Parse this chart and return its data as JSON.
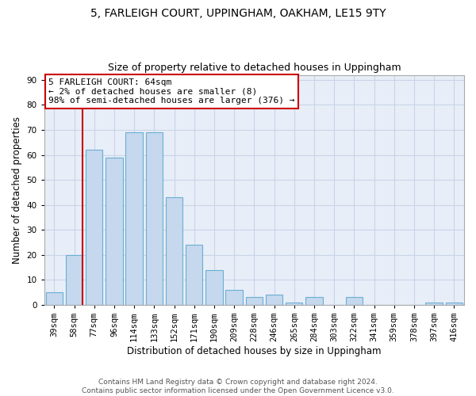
{
  "title": "5, FARLEIGH COURT, UPPINGHAM, OAKHAM, LE15 9TY",
  "subtitle": "Size of property relative to detached houses in Uppingham",
  "xlabel": "Distribution of detached houses by size in Uppingham",
  "ylabel": "Number of detached properties",
  "categories": [
    "39sqm",
    "58sqm",
    "77sqm",
    "96sqm",
    "114sqm",
    "133sqm",
    "152sqm",
    "171sqm",
    "190sqm",
    "209sqm",
    "228sqm",
    "246sqm",
    "265sqm",
    "284sqm",
    "303sqm",
    "322sqm",
    "341sqm",
    "359sqm",
    "378sqm",
    "397sqm",
    "416sqm"
  ],
  "values": [
    5,
    20,
    62,
    59,
    69,
    69,
    43,
    24,
    14,
    6,
    3,
    4,
    1,
    3,
    0,
    3,
    0,
    0,
    0,
    1,
    1
  ],
  "bar_color": "#c5d8ed",
  "bar_edge_color": "#6aafd4",
  "annotation_text": "5 FARLEIGH COURT: 64sqm\n← 2% of detached houses are smaller (8)\n98% of semi-detached houses are larger (376) →",
  "annotation_box_edge_color": "#cc0000",
  "vline_color": "#cc0000",
  "ylim": [
    0,
    92
  ],
  "yticks": [
    0,
    10,
    20,
    30,
    40,
    50,
    60,
    70,
    80,
    90
  ],
  "grid_color": "#c8d4e8",
  "background_color": "#e8eef8",
  "footer": "Contains HM Land Registry data © Crown copyright and database right 2024.\nContains public sector information licensed under the Open Government Licence v3.0.",
  "title_fontsize": 10,
  "subtitle_fontsize": 9,
  "annotation_fontsize": 8,
  "axis_label_fontsize": 8.5,
  "tick_fontsize": 7.5,
  "footer_fontsize": 6.5
}
